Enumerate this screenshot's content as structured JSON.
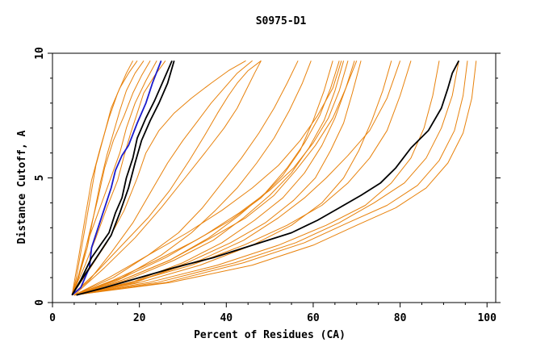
{
  "chart_data": {
    "type": "line",
    "title": "S0975-D1",
    "xlabel": "Percent of Residues (CA)",
    "ylabel": "Distance Cutoff, A",
    "xlim": [
      0,
      102
    ],
    "ylim": [
      0,
      10
    ],
    "xticks": [
      0,
      20,
      40,
      60,
      80,
      100
    ],
    "yticks": [
      0,
      5,
      10
    ],
    "grid": false,
    "legend": "none",
    "colors": {
      "orange": "#e8820c",
      "black": "#000000",
      "blue": "#1a1acc",
      "axis": "#000000"
    },
    "series": [
      {
        "color": "#1a1acc",
        "x": [
          4.5,
          6.5,
          8.5,
          9.0,
          10.5,
          12.0,
          13.5,
          14.5,
          16.0,
          17.5,
          19.5,
          21.5,
          23.0,
          25.0
        ],
        "y": [
          0.3,
          0.6,
          1.4,
          2.2,
          3.0,
          3.8,
          4.6,
          5.3,
          5.9,
          6.3,
          7.2,
          8.0,
          8.8,
          9.7
        ]
      },
      {
        "color": "#000000",
        "x": [
          4.5,
          6.5,
          9.0,
          11.0,
          13.0,
          14.5,
          16.0,
          17.0,
          18.5,
          19.5,
          21.5,
          23.5,
          25.5,
          27.5
        ],
        "y": [
          0.3,
          0.9,
          1.8,
          2.3,
          2.8,
          3.6,
          4.2,
          5.0,
          5.8,
          6.6,
          7.4,
          8.1,
          8.9,
          9.7
        ]
      },
      {
        "color": "#000000",
        "x": [
          4.5,
          7.0,
          10.5,
          13.5,
          15.5,
          17.5,
          19.0,
          20.5,
          22.5,
          24.5,
          26.5,
          28.0
        ],
        "y": [
          0.3,
          1.0,
          1.9,
          2.7,
          3.6,
          4.6,
          5.6,
          6.5,
          7.3,
          8.0,
          8.8,
          9.7
        ]
      },
      {
        "color": "#000000",
        "x": [
          5.5,
          12.0,
          20.0,
          28.0,
          37.0,
          46.0,
          55.0,
          61.0,
          66.0,
          71.0,
          75.5,
          79.0,
          82.5,
          86.5,
          89.5,
          91.0,
          92.0,
          93.5
        ],
        "y": [
          0.3,
          0.6,
          1.0,
          1.4,
          1.8,
          2.3,
          2.8,
          3.3,
          3.8,
          4.3,
          4.8,
          5.4,
          6.2,
          6.9,
          7.8,
          8.6,
          9.2,
          9.7
        ]
      },
      {
        "color": "#e8820c",
        "x": [
          4.5,
          5.5,
          7.0,
          8.5,
          10.0,
          12.0,
          13.5,
          15.5,
          17.5,
          19.5
        ],
        "y": [
          0.3,
          1.0,
          2.5,
          4.0,
          5.5,
          6.8,
          7.8,
          8.6,
          9.2,
          9.7
        ]
      },
      {
        "color": "#e8820c",
        "x": [
          4.5,
          6.5,
          8.5,
          10.5,
          12.0,
          14.0,
          16.5,
          18.5,
          20.5,
          22.5
        ],
        "y": [
          0.3,
          1.3,
          2.8,
          4.2,
          5.4,
          6.5,
          7.5,
          8.4,
          9.1,
          9.7
        ]
      },
      {
        "color": "#e8820c",
        "x": [
          4.5,
          6.0,
          8.0,
          10.5,
          13.0,
          15.5,
          17.0,
          19.0,
          21.5,
          24.0
        ],
        "y": [
          0.3,
          1.1,
          2.4,
          3.6,
          4.8,
          6.0,
          7.0,
          8.0,
          8.9,
          9.7
        ]
      },
      {
        "color": "#e8820c",
        "x": [
          4.5,
          7.5,
          10.0,
          12.5,
          15.0,
          16.5,
          18.0,
          19.5,
          21.0,
          23.5,
          26.0
        ],
        "y": [
          0.3,
          1.5,
          2.6,
          3.8,
          4.9,
          5.9,
          6.8,
          7.6,
          8.4,
          9.1,
          9.7
        ]
      },
      {
        "color": "#e8820c",
        "x": [
          4.5,
          6.0,
          7.5,
          9.0,
          11.0,
          13.0,
          15.0,
          17.0,
          18.5
        ],
        "y": [
          0.3,
          1.8,
          3.4,
          4.9,
          6.2,
          7.4,
          8.4,
          9.2,
          9.7
        ]
      },
      {
        "color": "#e8820c",
        "x": [
          4.5,
          6.0,
          8.0,
          9.5,
          11.0,
          12.5,
          14.0,
          15.5,
          17.0,
          19.0,
          21.0
        ],
        "y": [
          0.3,
          1.0,
          2.2,
          3.5,
          4.8,
          5.9,
          6.8,
          7.7,
          8.5,
          9.2,
          9.7
        ]
      },
      {
        "color": "#e8820c",
        "x": [
          4.5,
          8.0,
          12.5,
          16.5,
          19.5,
          21.5,
          24.5,
          28.0,
          32.0,
          36.5,
          40.5,
          44.5
        ],
        "y": [
          0.3,
          1.2,
          2.4,
          3.7,
          5.0,
          6.0,
          6.9,
          7.6,
          8.2,
          8.8,
          9.3,
          9.7
        ]
      },
      {
        "color": "#e8820c",
        "x": [
          4.5,
          8.5,
          13.5,
          18.5,
          22.5,
          26.5,
          30.0,
          33.5,
          36.5,
          39.5,
          42.5,
          46.0
        ],
        "y": [
          0.3,
          0.9,
          2.0,
          3.2,
          4.4,
          5.6,
          6.5,
          7.3,
          8.0,
          8.6,
          9.2,
          9.7
        ]
      },
      {
        "color": "#e8820c",
        "x": [
          4.5,
          10.0,
          16.0,
          22.0,
          27.0,
          31.5,
          35.0,
          38.0,
          40.5,
          42.5,
          45.0,
          48.0
        ],
        "y": [
          0.3,
          1.2,
          2.3,
          3.4,
          4.5,
          5.7,
          6.7,
          7.6,
          8.3,
          8.8,
          9.3,
          9.7
        ]
      },
      {
        "color": "#e8820c",
        "x": [
          5.0,
          12.0,
          19.0,
          25.0,
          30.5,
          35.5,
          39.5,
          42.5,
          44.5,
          46.5,
          48.0
        ],
        "y": [
          0.3,
          1.4,
          2.6,
          3.8,
          5.0,
          6.1,
          7.0,
          7.8,
          8.5,
          9.2,
          9.7
        ]
      },
      {
        "color": "#e8820c",
        "x": [
          5.0,
          14.0,
          22.0,
          29.0,
          34.5,
          39.0,
          43.5,
          47.5,
          51.0,
          54.0,
          56.5
        ],
        "y": [
          0.3,
          1.0,
          1.9,
          2.8,
          3.8,
          4.8,
          5.8,
          6.8,
          7.8,
          8.8,
          9.7
        ]
      },
      {
        "color": "#e8820c",
        "x": [
          5.0,
          16.0,
          25.0,
          32.0,
          37.5,
          42.5,
          47.0,
          51.0,
          54.5,
          57.5,
          59.5
        ],
        "y": [
          0.3,
          1.0,
          1.9,
          2.8,
          3.7,
          4.6,
          5.6,
          6.6,
          7.7,
          8.8,
          9.7
        ]
      },
      {
        "color": "#e8820c",
        "x": [
          5.0,
          14.0,
          24.0,
          33.0,
          41.0,
          48.0,
          53.0,
          57.0,
          60.0,
          62.5,
          64.5
        ],
        "y": [
          0.3,
          0.9,
          1.7,
          2.5,
          3.3,
          4.2,
          5.1,
          6.1,
          7.3,
          8.5,
          9.7
        ]
      },
      {
        "color": "#e8820c",
        "x": [
          5.0,
          16.0,
          27.0,
          36.0,
          43.0,
          49.0,
          54.0,
          58.0,
          61.5,
          64.0,
          66.0
        ],
        "y": [
          0.3,
          0.9,
          1.7,
          2.6,
          3.5,
          4.4,
          5.4,
          6.4,
          7.5,
          8.6,
          9.7
        ]
      },
      {
        "color": "#e8820c",
        "x": [
          5.0,
          17.0,
          28.0,
          37.0,
          44.0,
          50.0,
          55.0,
          59.0,
          62.5,
          65.0,
          67.0
        ],
        "y": [
          0.3,
          0.9,
          1.7,
          2.5,
          3.4,
          4.3,
          5.2,
          6.2,
          7.3,
          8.5,
          9.7
        ]
      },
      {
        "color": "#e8820c",
        "x": [
          5.0,
          15.0,
          26.0,
          35.0,
          43.0,
          50.0,
          55.5,
          60.0,
          63.5,
          66.0,
          68.0
        ],
        "y": [
          0.3,
          0.9,
          1.8,
          2.7,
          3.6,
          4.5,
          5.4,
          6.4,
          7.4,
          8.5,
          9.7
        ]
      },
      {
        "color": "#e8820c",
        "x": [
          5.0,
          13.0,
          22.0,
          31.0,
          39.0,
          46.0,
          52.0,
          57.0,
          61.0,
          64.5,
          66.5
        ],
        "y": [
          0.3,
          1.0,
          1.9,
          2.8,
          3.7,
          4.6,
          5.5,
          6.5,
          7.5,
          8.6,
          9.7
        ]
      },
      {
        "color": "#e8820c",
        "x": [
          5.0,
          18.0,
          30.0,
          39.0,
          46.5,
          53.0,
          58.0,
          62.0,
          65.0,
          67.5,
          69.5
        ],
        "y": [
          0.3,
          0.8,
          1.6,
          2.4,
          3.3,
          4.2,
          5.2,
          6.3,
          7.4,
          8.6,
          9.7
        ]
      },
      {
        "color": "#e8820c",
        "x": [
          5.0,
          16.0,
          27.0,
          36.5,
          44.5,
          51.0,
          56.0,
          60.5,
          64.5,
          67.5,
          70.0
        ],
        "y": [
          0.3,
          0.9,
          1.7,
          2.6,
          3.4,
          4.3,
          5.3,
          6.3,
          7.4,
          8.6,
          9.7
        ]
      },
      {
        "color": "#e8820c",
        "x": [
          5.0,
          19.0,
          31.0,
          41.0,
          49.0,
          55.5,
          60.5,
          64.0,
          67.0,
          69.0,
          71.0
        ],
        "y": [
          0.3,
          0.8,
          1.6,
          2.4,
          3.2,
          4.1,
          5.0,
          6.1,
          7.2,
          8.4,
          9.7
        ]
      },
      {
        "color": "#e8820c",
        "x": [
          5.0,
          20.0,
          34.0,
          46.0,
          55.0,
          62.0,
          67.0,
          70.5,
          73.5,
          76.0,
          78.0
        ],
        "y": [
          0.3,
          0.8,
          1.5,
          2.3,
          3.1,
          4.0,
          5.0,
          6.1,
          7.3,
          8.5,
          9.7
        ]
      },
      {
        "color": "#e8820c",
        "x": [
          5.0,
          18.0,
          32.0,
          44.0,
          54.0,
          62.0,
          68.0,
          73.0,
          77.0,
          80.0,
          82.5
        ],
        "y": [
          0.3,
          0.8,
          1.5,
          2.3,
          3.1,
          3.9,
          4.8,
          5.8,
          6.9,
          8.3,
          9.7
        ]
      },
      {
        "color": "#e8820c",
        "x": [
          5.0,
          22.0,
          38.0,
          52.0,
          63.0,
          72.0,
          78.0,
          82.5,
          85.5,
          87.5,
          89.0
        ],
        "y": [
          0.3,
          0.8,
          1.5,
          2.3,
          3.1,
          3.9,
          4.8,
          5.8,
          7.0,
          8.3,
          9.7
        ]
      },
      {
        "color": "#e8820c",
        "x": [
          5.0,
          24.0,
          42.0,
          56.0,
          66.0,
          74.0,
          81.0,
          86.0,
          89.5,
          92.0,
          93.5
        ],
        "y": [
          0.3,
          0.8,
          1.6,
          2.4,
          3.2,
          4.0,
          4.8,
          5.8,
          7.0,
          8.3,
          9.7
        ]
      },
      {
        "color": "#e8820c",
        "x": [
          5.0,
          26.0,
          44.0,
          58.0,
          68.0,
          77.0,
          84.0,
          89.0,
          92.5,
          94.5,
          95.5
        ],
        "y": [
          0.3,
          0.8,
          1.6,
          2.4,
          3.2,
          3.9,
          4.7,
          5.7,
          6.9,
          8.3,
          9.7
        ]
      },
      {
        "color": "#e8820c",
        "x": [
          5.0,
          27.0,
          46.0,
          60.0,
          70.0,
          79.0,
          86.0,
          91.0,
          94.5,
          96.5,
          97.5
        ],
        "y": [
          0.3,
          0.8,
          1.5,
          2.3,
          3.1,
          3.8,
          4.6,
          5.6,
          6.8,
          8.2,
          9.7
        ]
      },
      {
        "color": "#e8820c",
        "x": [
          5.0,
          20.0,
          34.0,
          44.0,
          52.0,
          58.0,
          63.0,
          68.0,
          73.0,
          77.0,
          80.0
        ],
        "y": [
          0.3,
          0.9,
          1.7,
          2.5,
          3.4,
          4.2,
          5.0,
          5.9,
          6.9,
          8.2,
          9.7
        ]
      }
    ]
  }
}
